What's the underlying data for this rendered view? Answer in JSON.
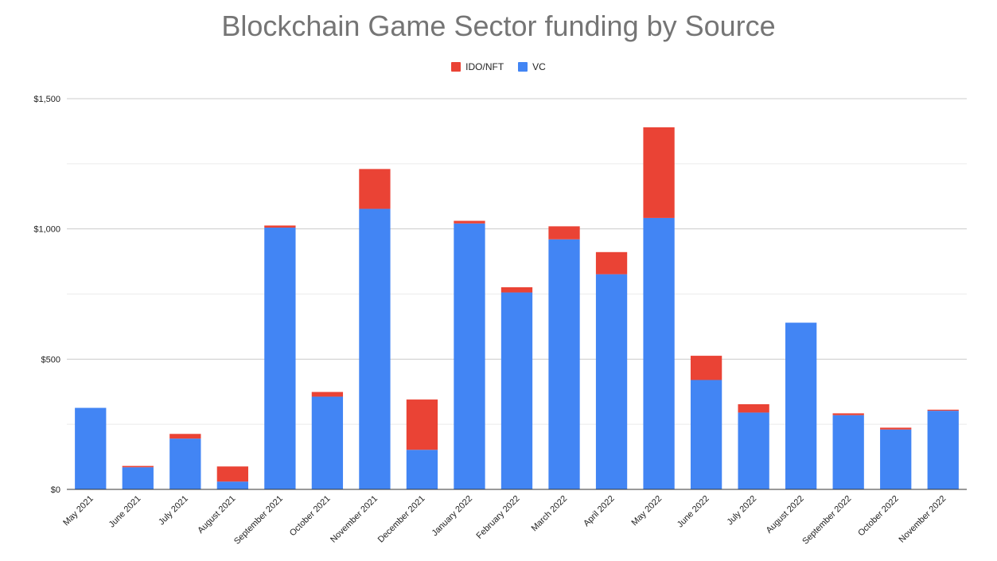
{
  "chart_data": {
    "type": "bar",
    "stacked": true,
    "title": "Blockchain Game Sector funding by Source",
    "xlabel": "",
    "ylabel": "",
    "ylim": [
      0,
      1500
    ],
    "yticks": [
      0,
      500,
      1000,
      1500
    ],
    "ytick_labels": [
      "$0",
      "$500",
      "$1,000",
      "$1,500"
    ],
    "grid": true,
    "legend_position": "top-center",
    "categories": [
      "May 2021",
      "June 2021",
      "July 2021",
      "August 2021",
      "September 2021",
      "October 2021",
      "November 2021",
      "December 2021",
      "January 2022",
      "February 2022",
      "March 2022",
      "April 2022",
      "May 2022",
      "June 2022",
      "July 2022",
      "August 2022",
      "September 2022",
      "October 2022",
      "November 2022"
    ],
    "series": [
      {
        "name": "VC",
        "color": "#4285F4",
        "values": [
          313,
          85,
          195,
          30,
          1005,
          356,
          1077,
          152,
          1021,
          756,
          960,
          826,
          1042,
          420,
          295,
          640,
          285,
          230,
          302
        ]
      },
      {
        "name": "IDO/NFT",
        "color": "#EA4335",
        "values": [
          0,
          5,
          18,
          58,
          8,
          18,
          153,
          193,
          10,
          20,
          50,
          85,
          348,
          93,
          32,
          0,
          7,
          7,
          4
        ]
      }
    ],
    "legend": [
      {
        "label": "IDO/NFT",
        "color": "#EA4335"
      },
      {
        "label": "VC",
        "color": "#4285F4"
      }
    ]
  }
}
